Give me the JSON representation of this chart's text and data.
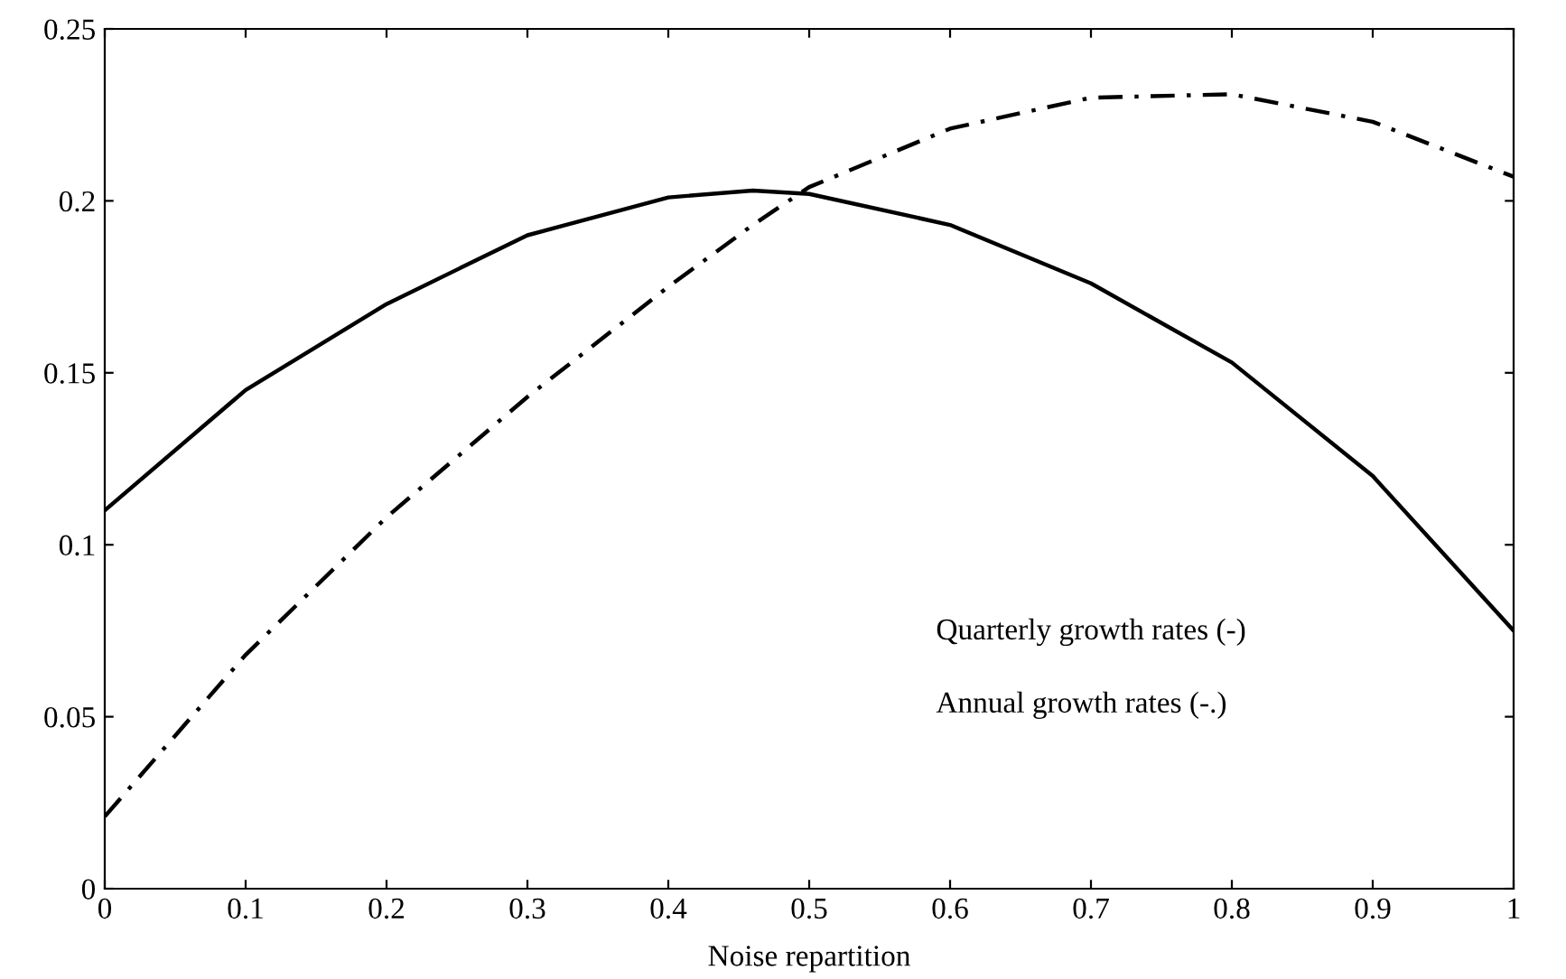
{
  "chart_data": {
    "type": "line",
    "xlabel": "Noise repartition",
    "x": [
      0,
      0.1,
      0.2,
      0.3,
      0.4,
      0.46,
      0.5,
      0.6,
      0.7,
      0.8,
      0.9,
      1
    ],
    "series": [
      {
        "color": "#000000",
        "line_style": "solid",
        "values": [
          0.11,
          0.145,
          0.17,
          0.19,
          0.201,
          0.203,
          0.202,
          0.193,
          0.176,
          0.153,
          0.12,
          0.075
        ]
      },
      {
        "color": "#000000",
        "line_style": "dashed",
        "values": [
          0.021,
          0.068,
          0.108,
          0.143,
          0.175,
          0.193,
          0.204,
          0.221,
          0.23,
          0.231,
          0.223,
          0.207
        ]
      }
    ],
    "annotations": [
      "Quarterly growth rates (-)",
      "Annual growth rates (-.)"
    ],
    "xlim": [
      0,
      1
    ],
    "xticks": [
      0,
      0.1,
      0.2,
      0.3,
      0.4,
      0.5,
      0.6,
      0.7,
      0.8,
      0.9,
      1
    ],
    "ylim": [
      0,
      0.25
    ],
    "yticks": [
      0,
      0.05,
      0.1,
      0.15,
      0.2,
      0.25
    ],
    "grid": false,
    "legend": false,
    "marker": "none"
  }
}
